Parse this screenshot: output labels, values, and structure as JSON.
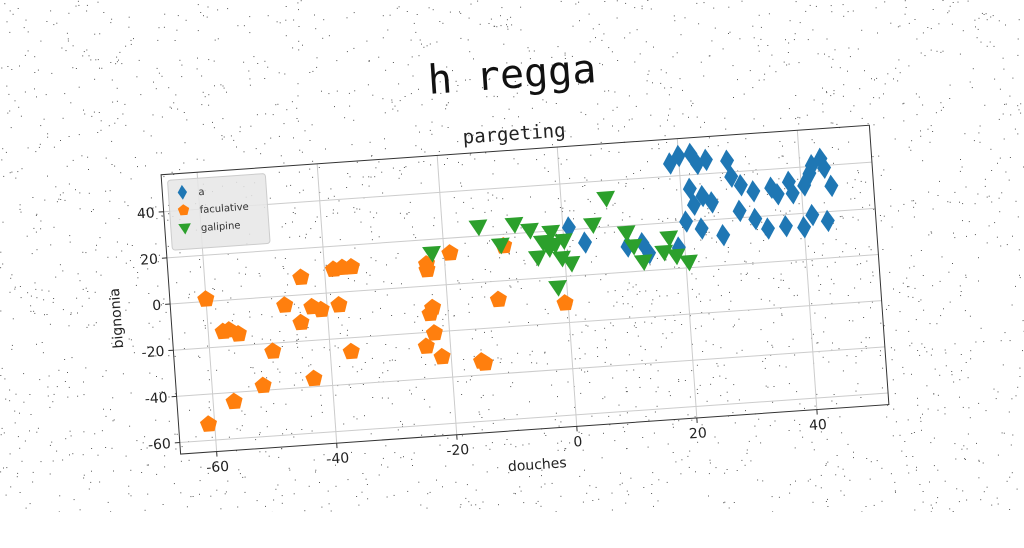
{
  "suptitle": "h regga",
  "chart_data": {
    "type": "scatter",
    "title": "pargeting",
    "xlabel": "douches",
    "ylabel": "bignonia",
    "xlim": [
      -66,
      52
    ],
    "ylim": [
      -65,
      56
    ],
    "xticks": [
      -60,
      -40,
      -20,
      0,
      20,
      40
    ],
    "yticks": [
      -60,
      -40,
      -20,
      0,
      20,
      40
    ],
    "grid": true,
    "legend_position": "top-left",
    "series": [
      {
        "name": "a",
        "marker": "diamond",
        "color": "#1f77b4",
        "points": [
          [
            18.5,
            45.5
          ],
          [
            20.0,
            48.5
          ],
          [
            22.0,
            49.0
          ],
          [
            23.0,
            44.5
          ],
          [
            24.5,
            46.0
          ],
          [
            28.0,
            45.0
          ],
          [
            28.5,
            38.0
          ],
          [
            30.0,
            34.0
          ],
          [
            32.0,
            31.0
          ],
          [
            35.0,
            32.0
          ],
          [
            36.0,
            29.0
          ],
          [
            38.0,
            34.0
          ],
          [
            38.5,
            29.0
          ],
          [
            40.5,
            32.0
          ],
          [
            41.5,
            37.0
          ],
          [
            42.0,
            40.5
          ],
          [
            43.5,
            43.0
          ],
          [
            44.0,
            39.0
          ],
          [
            45.0,
            31.0
          ],
          [
            21.5,
            34.0
          ],
          [
            23.5,
            30.5
          ],
          [
            25.0,
            27.5
          ],
          [
            22.0,
            27.0
          ],
          [
            20.5,
            20.0
          ],
          [
            23.0,
            16.5
          ],
          [
            26.5,
            13.0
          ],
          [
            29.5,
            23.0
          ],
          [
            32.0,
            19.0
          ],
          [
            34.0,
            14.5
          ],
          [
            37.0,
            15.0
          ],
          [
            40.0,
            14.0
          ],
          [
            41.5,
            19.0
          ],
          [
            44.0,
            16.0
          ],
          [
            10.5,
            11.0
          ],
          [
            13.0,
            12.0
          ],
          [
            1.0,
            21.0
          ],
          [
            3.5,
            14.0
          ],
          [
            14.0,
            7.5
          ],
          [
            19.0,
            9.0
          ]
        ]
      },
      {
        "name": "faculative",
        "marker": "pentagon",
        "color": "#ff7f0e",
        "points": [
          [
            -61.0,
            -53.0
          ],
          [
            -56.5,
            -44.0
          ],
          [
            -51.5,
            -38.0
          ],
          [
            -49.5,
            -23.5
          ],
          [
            -55.0,
            -15.0
          ],
          [
            -56.5,
            -13.0
          ],
          [
            -57.5,
            -13.5
          ],
          [
            -60.0,
            1.0
          ],
          [
            -47.0,
            -4.0
          ],
          [
            -44.5,
            -12.0
          ],
          [
            -42.5,
            -5.5
          ],
          [
            -41.0,
            -7.0
          ],
          [
            -43.0,
            -36.5
          ],
          [
            -36.5,
            -26.0
          ],
          [
            -38.0,
            -5.5
          ],
          [
            -38.5,
            10.0
          ],
          [
            -37.0,
            10.5
          ],
          [
            -44.0,
            7.5
          ],
          [
            -35.5,
            10.5
          ],
          [
            -24.0,
            -26.0
          ],
          [
            -21.5,
            -31.0
          ],
          [
            -22.5,
            -20.5
          ],
          [
            -22.5,
            -9.5
          ],
          [
            -23.0,
            -12.0
          ],
          [
            -23.0,
            7.0
          ],
          [
            -23.0,
            9.5
          ],
          [
            -19.0,
            13.5
          ],
          [
            -15.0,
            -34.0
          ],
          [
            -14.5,
            -35.0
          ],
          [
            -11.5,
            -8.0
          ],
          [
            -10.0,
            15.0
          ],
          [
            -0.5,
            -11.5
          ]
        ]
      },
      {
        "name": "galipine",
        "marker": "triangle-down",
        "color": "#2ca02c",
        "points": [
          [
            -22.0,
            14.0
          ],
          [
            -14.0,
            24.0
          ],
          [
            -10.5,
            15.5
          ],
          [
            -8.0,
            24.0
          ],
          [
            -5.5,
            21.0
          ],
          [
            -3.5,
            15.5
          ],
          [
            -2.5,
            12.5
          ],
          [
            -4.5,
            9.0
          ],
          [
            -1.5,
            14.0
          ],
          [
            -0.5,
            8.0
          ],
          [
            0.0,
            15.5
          ],
          [
            1.0,
            5.5
          ],
          [
            -1.5,
            -4.5
          ],
          [
            5.0,
            21.5
          ],
          [
            7.5,
            32.5
          ],
          [
            10.5,
            17.0
          ],
          [
            11.5,
            11.0
          ],
          [
            13.0,
            4.0
          ],
          [
            16.5,
            7.5
          ],
          [
            17.5,
            13.5
          ],
          [
            18.5,
            5.5
          ],
          [
            20.5,
            2.5
          ],
          [
            -2.0,
            19.5
          ]
        ]
      }
    ]
  }
}
